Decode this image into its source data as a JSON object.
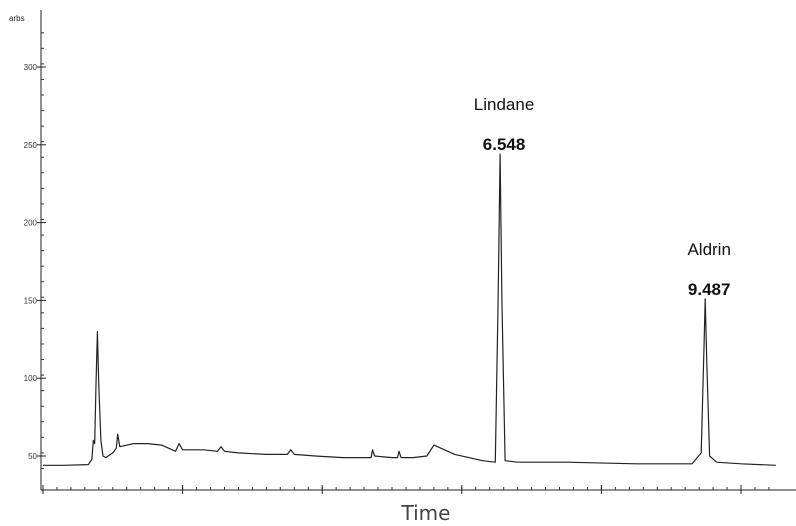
{
  "chart_data": {
    "type": "line",
    "title": "",
    "xlabel": "Time\u001f",
    "ylabel": "",
    "y_unit_label": "arbs",
    "xlim": [
      0,
      10.5
    ],
    "ylim": [
      40,
      330
    ],
    "yticks": [
      50,
      100,
      150,
      200,
      250,
      300
    ],
    "ytick_labels": [
      "50",
      "100",
      "150",
      "200",
      "250",
      "300"
    ],
    "xticks": [
      0,
      2,
      4,
      6,
      8,
      10
    ],
    "xtick_labels": [
      "",
      "",
      "",
      "",
      "",
      ""
    ],
    "grid": false,
    "legend": "none",
    "series": [
      {
        "color": "#222222",
        "x": [
          0,
          0.3,
          0.65,
          0.7,
          0.72,
          0.74,
          0.76,
          0.78,
          0.8,
          0.83,
          0.86,
          0.9,
          1.0,
          1.05,
          1.07,
          1.1,
          1.3,
          1.5,
          1.7,
          1.9,
          1.95,
          2.0,
          2.3,
          2.5,
          2.55,
          2.6,
          2.8,
          3.2,
          3.5,
          3.55,
          3.6,
          3.9,
          4.3,
          4.7,
          4.72,
          4.75,
          5.0,
          5.08,
          5.1,
          5.13,
          5.3,
          5.5,
          5.6,
          5.7,
          5.9,
          6.1,
          6.3,
          6.48,
          6.52,
          6.548,
          6.575,
          6.62,
          6.8,
          7.5,
          8.5,
          9.3,
          9.43,
          9.47,
          9.487,
          9.51,
          9.55,
          9.65,
          10.0,
          10.5
        ],
        "y": [
          44,
          44,
          44.5,
          48,
          60,
          58,
          96,
          130,
          95,
          60,
          50,
          49,
          52,
          55,
          64,
          56,
          58,
          58,
          57,
          53,
          58,
          54,
          54,
          53,
          56,
          53,
          52,
          51,
          51,
          54,
          51,
          50,
          49,
          49,
          54,
          50,
          49,
          49,
          53,
          49,
          49,
          50,
          57,
          55,
          51,
          49,
          47,
          46,
          150,
          244,
          150,
          47,
          46,
          46,
          45,
          45,
          52,
          120,
          151,
          110,
          50,
          46,
          45,
          44
        ]
      }
    ],
    "annotations": [
      {
        "name": "Lindane",
        "rt": "6.548",
        "x": 6.548,
        "y": 244
      },
      {
        "name": "Aldrin",
        "rt": "9.487",
        "x": 9.487,
        "y": 151
      }
    ]
  }
}
